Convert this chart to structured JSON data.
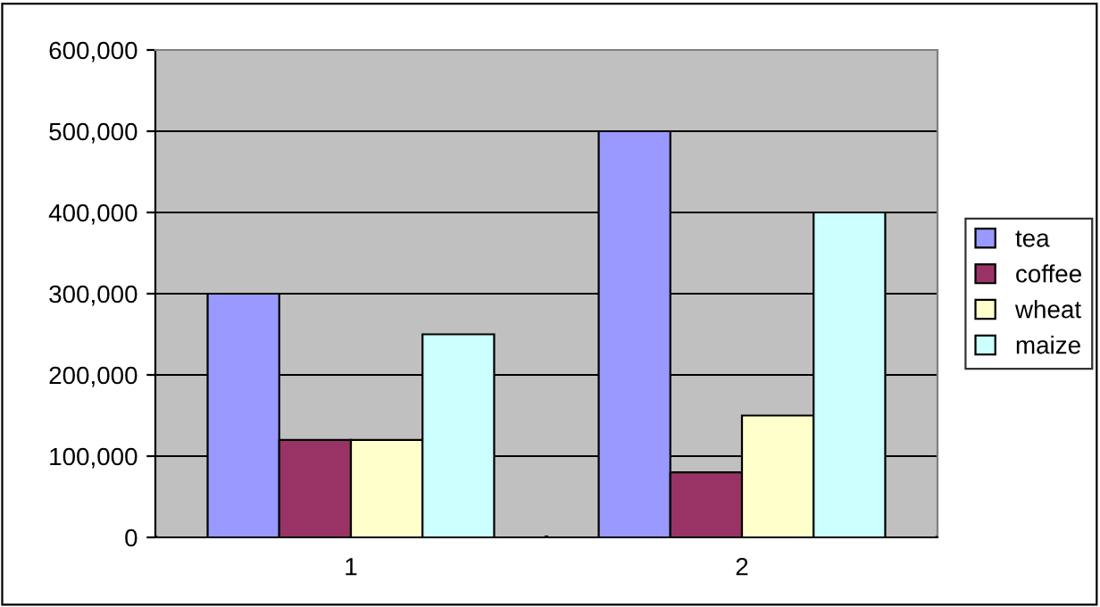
{
  "chart_data": {
    "type": "bar",
    "categories": [
      "1",
      "2"
    ],
    "series": [
      {
        "name": "tea",
        "color": "#9999ff",
        "values": [
          300000,
          500000
        ]
      },
      {
        "name": "coffee",
        "color": "#993366",
        "values": [
          120000,
          80000
        ]
      },
      {
        "name": "wheat",
        "color": "#ffffcc",
        "values": [
          120000,
          150000
        ]
      },
      {
        "name": "maize",
        "color": "#ccffff",
        "values": [
          250000,
          400000
        ]
      }
    ],
    "ylim": [
      0,
      600000
    ],
    "yticks": [
      {
        "value": 0,
        "label": "0"
      },
      {
        "value": 100000,
        "label": "100,000"
      },
      {
        "value": 200000,
        "label": "200,000"
      },
      {
        "value": 300000,
        "label": "300,000"
      },
      {
        "value": 400000,
        "label": "400,000"
      },
      {
        "value": 500000,
        "label": "500,000"
      },
      {
        "value": 600000,
        "label": "600,000"
      }
    ],
    "grid": "y",
    "legend": "right"
  }
}
